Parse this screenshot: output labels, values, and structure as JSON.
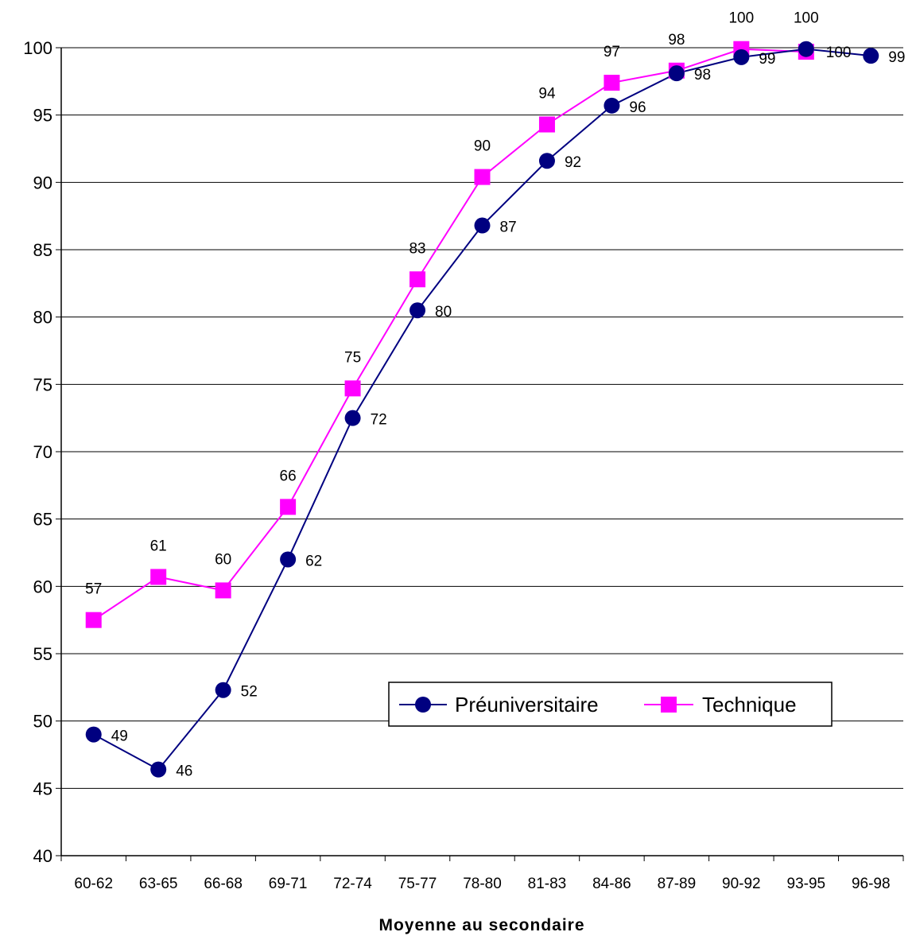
{
  "chart_data": {
    "type": "line",
    "title": "",
    "xlabel": "Moyenne au secondaire",
    "ylabel": "",
    "ylim": [
      40,
      100
    ],
    "yticks": [
      "40",
      "45",
      "50",
      "55",
      "60",
      "65",
      "70",
      "75",
      "80",
      "85",
      "90",
      "95",
      "100"
    ],
    "categories": [
      "60-62",
      "63-65",
      "66-68",
      "69-71",
      "72-74",
      "75-77",
      "78-80",
      "81-83",
      "84-86",
      "87-89",
      "90-92",
      "93-95",
      "96-98"
    ],
    "grid": "horizontal",
    "legend_position": "center-right",
    "series": [
      {
        "name": "Préuniversitaire",
        "color": "#000080",
        "marker": "circle",
        "values": [
          49,
          46.4,
          52.3,
          62,
          72.5,
          80.5,
          86.8,
          91.6,
          95.7,
          98.1,
          99.3,
          99.9,
          99.4
        ],
        "labels": [
          "49",
          "46",
          "52",
          "62",
          "72",
          "80",
          "87",
          "92",
          "96",
          "98",
          "99",
          "100",
          "99"
        ]
      },
      {
        "name": "Technique",
        "color": "#ff00ff",
        "marker": "square",
        "values": [
          57.5,
          60.7,
          59.7,
          65.9,
          74.7,
          82.8,
          90.4,
          94.3,
          97.4,
          98.3,
          99.9,
          99.7,
          null
        ],
        "labels": [
          "57",
          "61",
          "60",
          "66",
          "75",
          "83",
          "90",
          "94",
          "97",
          "98",
          "100",
          "100",
          ""
        ]
      }
    ]
  }
}
